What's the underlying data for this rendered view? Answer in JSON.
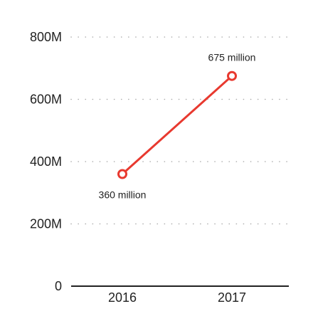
{
  "chart_data": {
    "type": "line",
    "title": "",
    "xlabel": "",
    "ylabel": "",
    "categories": [
      "2016",
      "2017"
    ],
    "series": [
      {
        "values": [
          360000000,
          675000000
        ],
        "data_labels": [
          "360 million",
          "675 million"
        ],
        "color": "#e8392f"
      }
    ],
    "ylim": [
      0,
      800000000
    ],
    "y_ticks": [
      {
        "value": 0,
        "label": "0"
      },
      {
        "value": 200000000,
        "label": "200M"
      },
      {
        "value": 400000000,
        "label": "400M"
      },
      {
        "value": 600000000,
        "label": "600M"
      },
      {
        "value": 800000000,
        "label": "800M"
      }
    ],
    "grid": "horizontal-dotted",
    "legend": "none",
    "label_placement": [
      "below",
      "above"
    ]
  }
}
